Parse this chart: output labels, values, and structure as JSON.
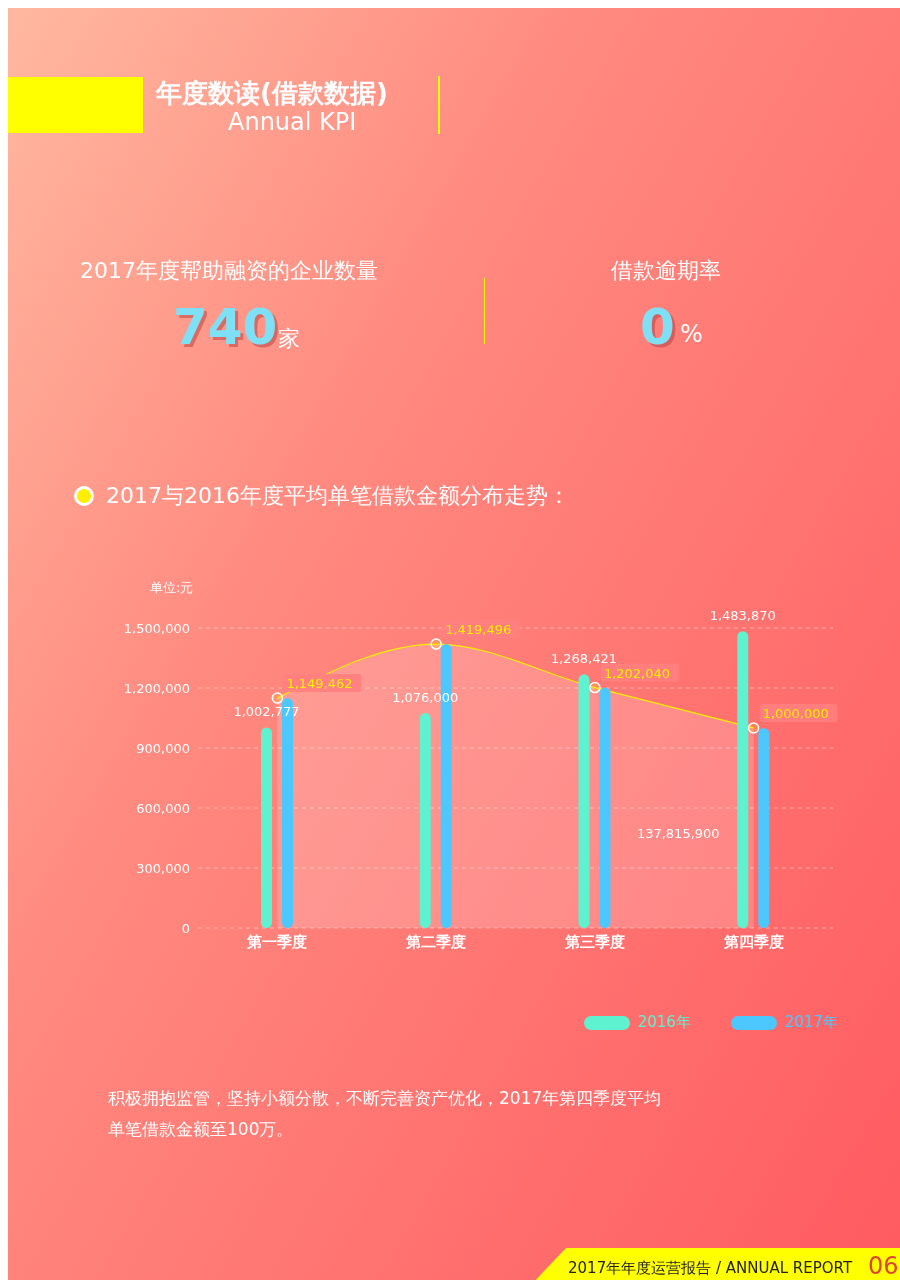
{
  "chart_data": [
    {
      "type": "other",
      "title": "年度数读(借款数据)",
      "subtitle": "Annual KPI",
      "annotations": [
        "2017年度帮助融资的企业数量",
        "740",
        "家",
        "借款逾期率",
        "0",
        "%",
        "2017年年度运营报告 / ANNUAL REPORT",
        "06"
      ]
    },
    {
      "type": "bar",
      "title": "2017与2016年度平均单笔借款金额分布走势：",
      "ylabel": "单位:元",
      "categories": [
        "第一季度",
        "第二季度",
        "第三季度",
        "第四季度"
      ],
      "series": [
        {
          "name": "2016年",
          "color": "#5ef2d0",
          "values": [
            1002777,
            1076000,
            1268421,
            1483870
          ],
          "value_labels": [
            "1,002,777",
            "1,076,000",
            "1,268,421",
            "1,483,870"
          ]
        },
        {
          "name": "2017年",
          "color": "#4dc8ff",
          "values": [
            1149462,
            1419496,
            1202040,
            1000000
          ]
        },
        {
          "type": "area",
          "color": "#ffee00",
          "values": [
            1149462,
            1419496,
            1202040,
            1000000
          ],
          "value_labels": [
            "1,149,462",
            "1,419,496",
            "1,202,040",
            "1,000,000"
          ]
        }
      ],
      "ylim": [
        0,
        1500000
      ],
      "yticks": [
        {
          "value": 0,
          "label": "0"
        },
        {
          "value": 300000,
          "label": "300,000"
        },
        {
          "value": 600000,
          "label": "600,000"
        },
        {
          "value": 900000,
          "label": "900,000"
        },
        {
          "value": 1200000,
          "label": "1,200,000"
        },
        {
          "value": 1500000,
          "label": "1,500,000"
        }
      ],
      "grid": "y",
      "legend": "bottom right",
      "marker": "circle",
      "annotations": [
        {
          "text": "137,815,900",
          "x": "第四季度",
          "y": 475000
        },
        "积极拥抱监管，坚持小额分散，不断完善资产优化，2017年第四季度平均单笔借款金额至100万。"
      ]
    }
  ]
}
